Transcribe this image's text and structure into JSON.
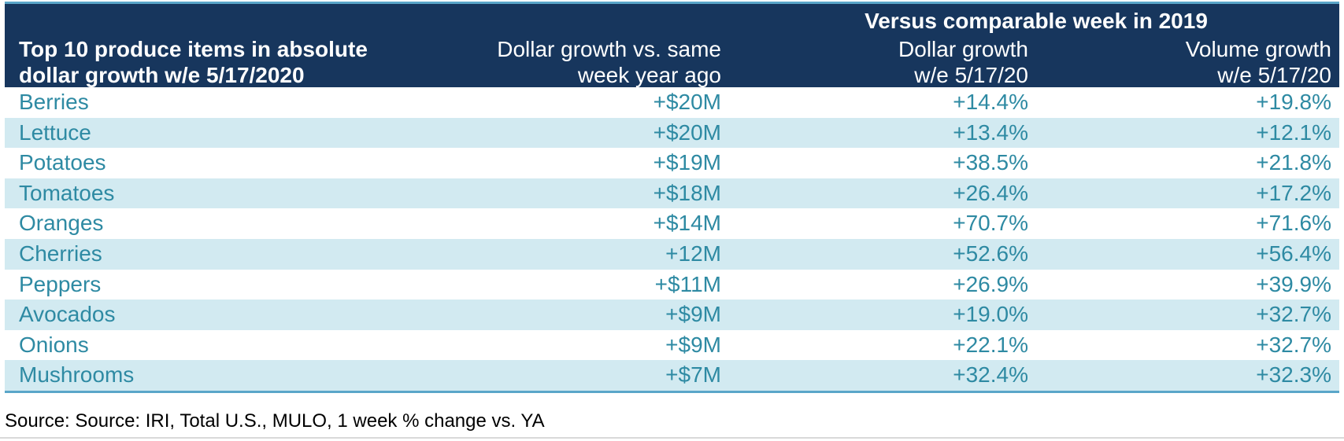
{
  "table": {
    "super_header": "Versus comparable week in 2019",
    "headers": {
      "item": [
        "Top 10 produce items in absolute",
        "dollar growth w/e 5/17/2020"
      ],
      "dollar_growth_vs_ya": [
        "Dollar growth vs. same",
        "week year ago"
      ],
      "dollar_growth_pct": [
        "Dollar growth",
        "w/e 5/17/20"
      ],
      "volume_growth_pct": [
        "Volume growth",
        "w/e 5/17/20"
      ]
    },
    "rows": [
      {
        "item": "Berries",
        "dollar": "+$20M",
        "dollar_pct": "+14.4%",
        "volume_pct": "+19.8%"
      },
      {
        "item": "Lettuce",
        "dollar": "+$20M",
        "dollar_pct": "+13.4%",
        "volume_pct": "+12.1%"
      },
      {
        "item": "Potatoes",
        "dollar": "+$19M",
        "dollar_pct": "+38.5%",
        "volume_pct": "+21.8%"
      },
      {
        "item": "Tomatoes",
        "dollar": "+$18M",
        "dollar_pct": "+26.4%",
        "volume_pct": "+17.2%"
      },
      {
        "item": "Oranges",
        "dollar": "+$14M",
        "dollar_pct": "+70.7%",
        "volume_pct": "+71.6%"
      },
      {
        "item": "Cherries",
        "dollar": "+12M",
        "dollar_pct": "+52.6%",
        "volume_pct": "+56.4%"
      },
      {
        "item": "Peppers",
        "dollar": "+$11M",
        "dollar_pct": "+26.9%",
        "volume_pct": "+39.9%"
      },
      {
        "item": "Avocados",
        "dollar": "+$9M",
        "dollar_pct": "+19.0%",
        "volume_pct": "+32.7%"
      },
      {
        "item": "Onions",
        "dollar": "+$9M",
        "dollar_pct": "+22.1%",
        "volume_pct": "+32.7%"
      },
      {
        "item": "Mushrooms",
        "dollar": "+$7M",
        "dollar_pct": "+32.4%",
        "volume_pct": "+32.3%"
      }
    ]
  },
  "source": "Source: Source: IRI, Total U.S., MULO, 1 week % change vs. YA",
  "colors": {
    "header_bg": "#17365d",
    "row_text": "#2e8aa3",
    "alt_row_bg": "#d2eaf1",
    "rule": "#5aa6c9"
  }
}
